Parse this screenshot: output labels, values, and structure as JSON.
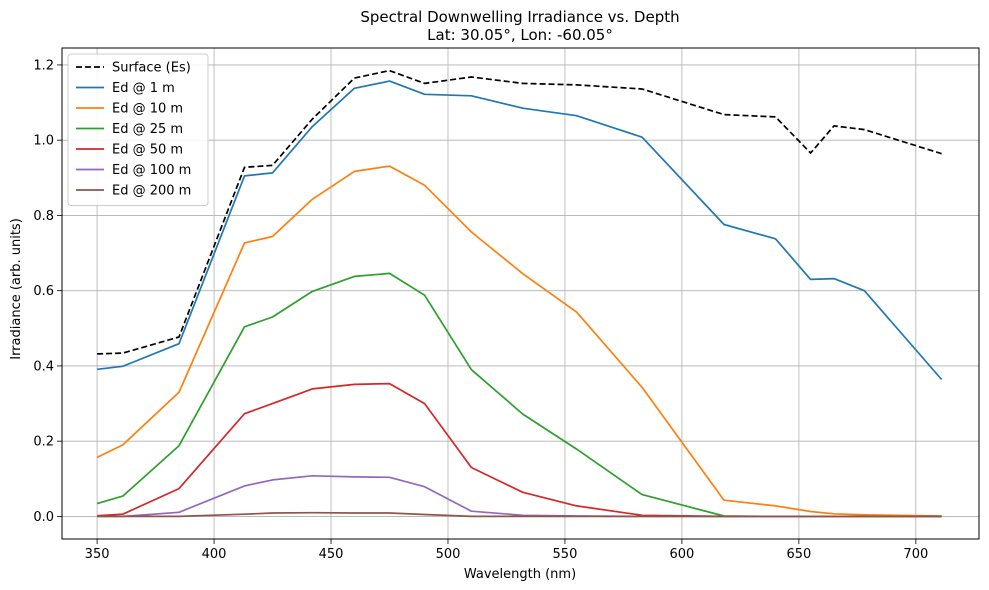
{
  "chart_data": {
    "type": "line",
    "title": "Spectral Downwelling Irradiance vs. Depth",
    "subtitle": "Lat: 30.05°, Lon: -60.05°",
    "xlabel": "Wavelength (nm)",
    "ylabel": "Irradiance (arb. units)",
    "xlim": [
      335,
      727
    ],
    "ylim": [
      -0.06,
      1.245
    ],
    "xticks": [
      350,
      400,
      450,
      500,
      550,
      600,
      650,
      700
    ],
    "yticks": [
      0.0,
      0.2,
      0.4,
      0.6,
      0.8,
      1.0,
      1.2
    ],
    "xtick_labels": [
      "350",
      "400",
      "450",
      "500",
      "550",
      "600",
      "650",
      "700"
    ],
    "ytick_labels": [
      "0.0",
      "0.2",
      "0.4",
      "0.6",
      "0.8",
      "1.0",
      "1.2"
    ],
    "grid": true,
    "legend_position": "top-left",
    "x": [
      350,
      361,
      385,
      413,
      425,
      442,
      460,
      475,
      490,
      510,
      532,
      555,
      583,
      618,
      640,
      655,
      665,
      678,
      711
    ],
    "series": [
      {
        "name": "Surface (Es)",
        "color": "#000000",
        "dashed": true,
        "values": [
          0.432,
          0.434,
          0.477,
          0.928,
          0.933,
          1.056,
          1.165,
          1.185,
          1.151,
          1.168,
          1.151,
          1.147,
          1.136,
          1.068,
          1.062,
          0.966,
          1.038,
          1.028,
          0.964
        ]
      },
      {
        "name": "Ed @ 1 m",
        "color": "#1f77b4",
        "dashed": false,
        "values": [
          0.391,
          0.399,
          0.459,
          0.905,
          0.913,
          1.036,
          1.138,
          1.157,
          1.122,
          1.118,
          1.085,
          1.065,
          1.008,
          0.776,
          0.738,
          0.63,
          0.632,
          0.6,
          0.364
        ]
      },
      {
        "name": "Ed @ 10 m",
        "color": "#ff7f0e",
        "dashed": false,
        "values": [
          0.157,
          0.19,
          0.33,
          0.727,
          0.744,
          0.843,
          0.917,
          0.931,
          0.88,
          0.756,
          0.645,
          0.543,
          0.343,
          0.043,
          0.028,
          0.013,
          0.007,
          0.004,
          0.001
        ]
      },
      {
        "name": "Ed @ 25 m",
        "color": "#2ca02c",
        "dashed": false,
        "values": [
          0.034,
          0.054,
          0.188,
          0.504,
          0.53,
          0.598,
          0.638,
          0.646,
          0.588,
          0.39,
          0.272,
          0.179,
          0.058,
          0.001,
          0.0,
          0.0,
          0.0,
          0.0,
          0.0
        ]
      },
      {
        "name": "Ed @ 50 m",
        "color": "#d62728",
        "dashed": false,
        "values": [
          0.002,
          0.006,
          0.074,
          0.273,
          0.3,
          0.339,
          0.351,
          0.353,
          0.3,
          0.13,
          0.064,
          0.028,
          0.003,
          0.0,
          0.0,
          0.0,
          0.0,
          0.0,
          0.0
        ]
      },
      {
        "name": "Ed @ 100 m",
        "color": "#9467bd",
        "dashed": false,
        "values": [
          0.0,
          0.0,
          0.011,
          0.081,
          0.097,
          0.108,
          0.105,
          0.104,
          0.079,
          0.014,
          0.003,
          0.001,
          0.0,
          0.0,
          0.0,
          0.0,
          0.0,
          0.0,
          0.0
        ]
      },
      {
        "name": "Ed @ 200 m",
        "color": "#8c564b",
        "dashed": false,
        "values": [
          0.0,
          0.0,
          0.0,
          0.006,
          0.009,
          0.01,
          0.009,
          0.009,
          0.005,
          0.0,
          0.0,
          0.0,
          0.0,
          0.0,
          0.0,
          0.0,
          0.0,
          0.0,
          0.0
        ]
      }
    ]
  }
}
